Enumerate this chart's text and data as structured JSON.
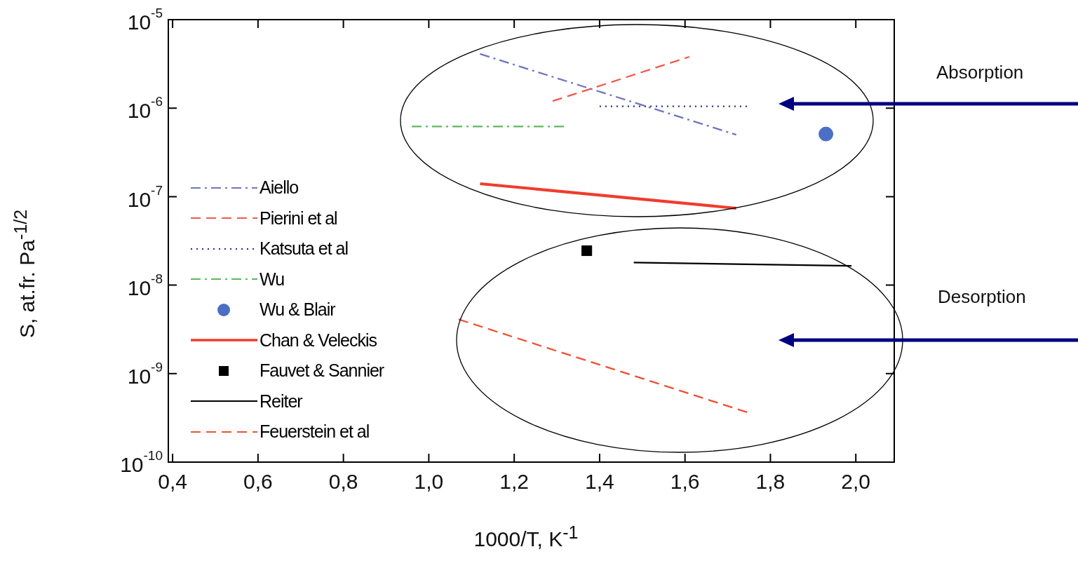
{
  "chart_data": {
    "type": "line",
    "xlabel": "1000/T, K$^{-1}$",
    "ylabel": "S, at.fr. Pa$^{-1/2}$",
    "log": "y",
    "grid": false,
    "legend": "left",
    "xlim": [
      0.39,
      2.09
    ],
    "ylim": [
      1e-10,
      1e-05
    ],
    "xticks": [
      {
        "value": 0.4,
        "label": "0,4"
      },
      {
        "value": 0.6,
        "label": "0,6"
      },
      {
        "value": 0.8,
        "label": "0,8"
      },
      {
        "value": 1.0,
        "label": "1,0"
      },
      {
        "value": 1.2,
        "label": "1,2"
      },
      {
        "value": 1.4,
        "label": "1,4"
      },
      {
        "value": 1.6,
        "label": "1,6"
      },
      {
        "value": 1.8,
        "label": "1,8"
      },
      {
        "value": 2.0,
        "label": "2,0"
      }
    ],
    "yticks": [
      {
        "value": 1e-10,
        "label": "10$^{-10}$"
      },
      {
        "value": 1e-09,
        "label": "10$^{-9}$"
      },
      {
        "value": 1e-08,
        "label": "10$^{-8}$"
      },
      {
        "value": 1e-07,
        "label": "10$^{-7}$"
      },
      {
        "value": 1e-06,
        "label": "10$^{-6}$"
      },
      {
        "value": 1e-05,
        "label": "10$^{-5}$"
      }
    ],
    "series": [
      {
        "name": "Aiello",
        "color": "#6f74c0",
        "line_style": "dashdot",
        "x": [
          1.12,
          1.72
        ],
        "values": [
          4.1e-06,
          5e-07
        ]
      },
      {
        "name": "Pierini et al",
        "color": "#f05a4a",
        "line_style": "dashed",
        "x": [
          1.29,
          1.61
        ],
        "values": [
          1.2e-06,
          3.8e-06
        ]
      },
      {
        "name": "Katsuta et al",
        "color": "#2a2a80",
        "line_style": "dotted",
        "x": [
          1.4,
          1.75
        ],
        "values": [
          1.05e-06,
          1.05e-06
        ]
      },
      {
        "name": "Wu",
        "color": "#5cb85c",
        "line_style": "dashdot",
        "x": [
          0.96,
          1.32
        ],
        "values": [
          6.2e-07,
          6.2e-07
        ]
      },
      {
        "name": "Wu & Blair",
        "color": "#4a6fc4",
        "type": "scatter",
        "marker": "circle",
        "x": [
          1.93
        ],
        "values": [
          5.1e-07
        ]
      },
      {
        "name": "Chan & Veleckis",
        "color": "#f03c2c",
        "line_style": "solid",
        "x": [
          1.12,
          1.72
        ],
        "values": [
          1.4e-07,
          7.4e-08
        ]
      },
      {
        "name": "Fauvet & Sannier",
        "color": "#000000",
        "type": "scatter",
        "marker": "square",
        "x": [
          1.37
        ],
        "values": [
          2.45e-08
        ]
      },
      {
        "name": "Reiter",
        "color": "#000000",
        "line_style": "solid",
        "x": [
          1.48,
          1.99
        ],
        "values": [
          1.8e-08,
          1.65e-08
        ]
      },
      {
        "name": "Feuerstein et al",
        "color": "#f05030",
        "line_style": "dashed",
        "x": [
          1.07,
          1.75
        ],
        "values": [
          4.1e-09,
          3.6e-10
        ]
      }
    ],
    "annotations": [
      "Absorption",
      "Desorption"
    ]
  }
}
